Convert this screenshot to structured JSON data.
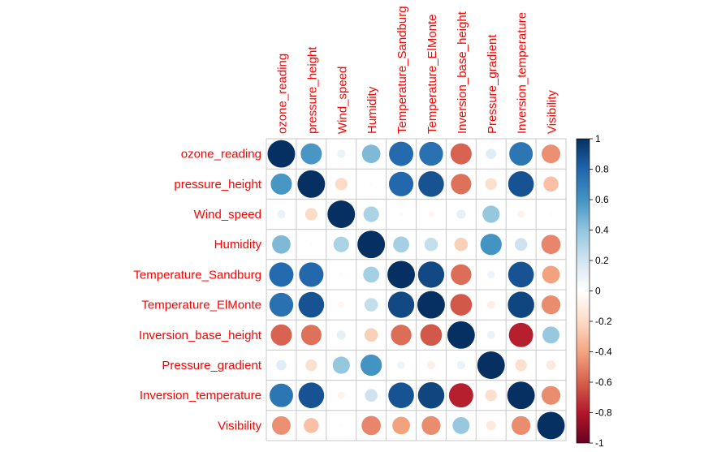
{
  "chart_data": {
    "type": "heatmap",
    "subtype": "correlation-circle-matrix",
    "variables": [
      "ozone_reading",
      "pressure_height",
      "Wind_speed",
      "Humidity",
      "Temperature_Sandburg",
      "Temperature_ElMonte",
      "Inversion_base_height",
      "Pressure_gradient",
      "Inversion_temperature",
      "Visibility"
    ],
    "matrix": [
      [
        1.0,
        0.59,
        0.09,
        0.45,
        0.78,
        0.75,
        -0.59,
        0.14,
        0.73,
        -0.46
      ],
      [
        0.59,
        1.0,
        -0.2,
        -0.02,
        0.79,
        0.87,
        -0.55,
        -0.18,
        0.87,
        -0.3
      ],
      [
        0.09,
        -0.2,
        1.0,
        0.32,
        -0.03,
        -0.05,
        0.11,
        0.39,
        -0.07,
        -0.02
      ],
      [
        0.45,
        -0.02,
        0.32,
        1.0,
        0.34,
        0.24,
        -0.24,
        0.6,
        0.21,
        -0.49
      ],
      [
        0.78,
        0.79,
        -0.03,
        0.34,
        1.0,
        0.91,
        -0.56,
        0.08,
        0.87,
        -0.41
      ],
      [
        0.75,
        0.87,
        -0.05,
        0.24,
        0.91,
        1.0,
        -0.62,
        -0.09,
        0.92,
        -0.47
      ],
      [
        -0.59,
        -0.55,
        0.11,
        -0.24,
        -0.56,
        -0.62,
        1.0,
        0.09,
        -0.78,
        0.38
      ],
      [
        0.14,
        -0.18,
        0.39,
        0.6,
        0.08,
        -0.09,
        0.09,
        1.0,
        -0.18,
        -0.12
      ],
      [
        0.73,
        0.87,
        -0.07,
        0.21,
        0.87,
        0.92,
        -0.78,
        -0.18,
        1.0,
        -0.47
      ],
      [
        -0.46,
        -0.3,
        -0.02,
        -0.49,
        -0.41,
        -0.47,
        0.38,
        -0.12,
        -0.47,
        1.0
      ]
    ],
    "color_scale": {
      "range": [
        -1,
        1
      ],
      "ticks": [
        "1",
        "0.8",
        "0.6",
        "0.4",
        "0.2",
        "0",
        "-0.2",
        "-0.4",
        "-0.6",
        "-0.8",
        "-1"
      ],
      "stops": [
        "#67001F",
        "#B2182B",
        "#D6604D",
        "#F4A582",
        "#FDDBC7",
        "#FFFFFF",
        "#D1E5F0",
        "#92C5DE",
        "#4393C3",
        "#2166AC",
        "#053061"
      ]
    },
    "label_color": "#FF0000",
    "grid_color": "#C8C8C8",
    "legend_position": "right"
  }
}
